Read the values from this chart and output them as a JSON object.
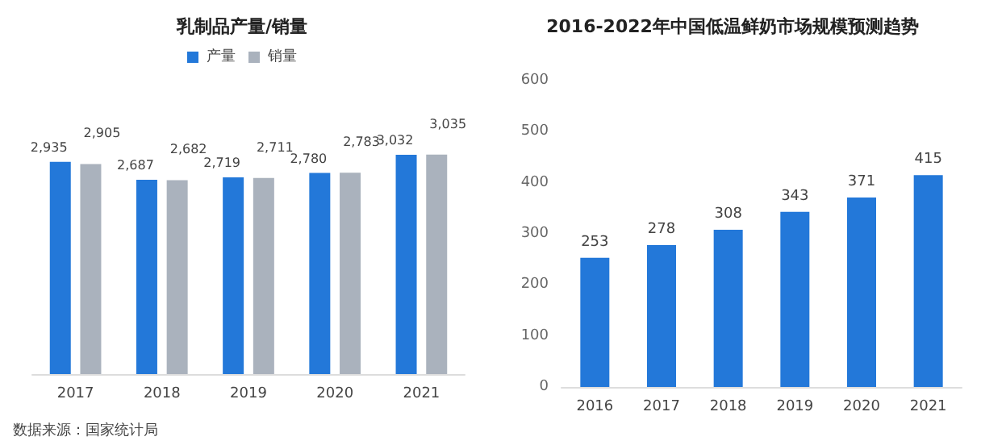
{
  "chart_data": [
    {
      "type": "bar",
      "title": "乳制品产量/销量",
      "categories": [
        "2017",
        "2018",
        "2019",
        "2020",
        "2021"
      ],
      "legend": "top",
      "series": [
        {
          "name": "产量",
          "color": "#2378d9",
          "values": [
            2935,
            2687,
            2719,
            2780,
            3032
          ],
          "value_labels": [
            "2,935",
            "2,687",
            "2,719",
            "2,780",
            "3,032"
          ]
        },
        {
          "name": "销量",
          "color": "#aab2bd",
          "values": [
            2905,
            2682,
            2711,
            2783,
            3035
          ],
          "value_labels": [
            "2,905",
            "2,682",
            "2,711",
            "2,783",
            "3,035"
          ]
        }
      ],
      "annotations": [
        "数据来源：国家统计局"
      ]
    },
    {
      "type": "bar",
      "title": "2016-2022年中国低温鲜奶市场规模预测趋势",
      "categories": [
        "2016",
        "2017",
        "2018",
        "2019",
        "2020",
        "2021"
      ],
      "values": [
        253,
        278,
        308,
        343,
        371,
        415
      ],
      "color": "#2378d9",
      "ylim": [
        0,
        600
      ],
      "yticks": [
        0,
        100,
        200,
        300,
        400,
        500,
        600
      ],
      "grid": false,
      "data_labels": true
    }
  ]
}
